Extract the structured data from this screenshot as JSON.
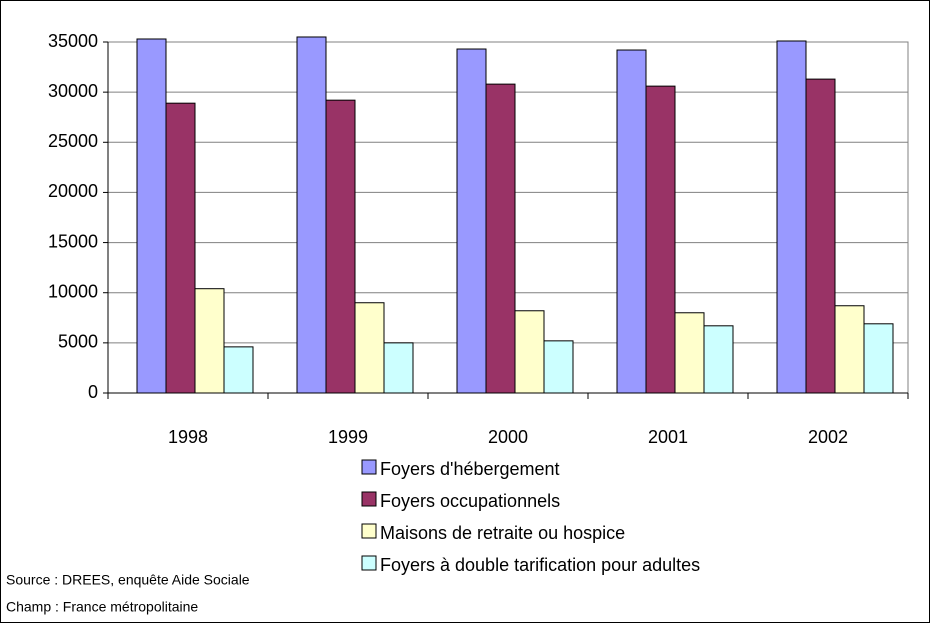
{
  "chart_data": {
    "type": "bar",
    "categories": [
      "1998",
      "1999",
      "2000",
      "2001",
      "2002"
    ],
    "series": [
      {
        "name": "Foyers d'hébergement",
        "color": "#9999ff",
        "values": [
          35300,
          35500,
          34300,
          34200,
          35100
        ]
      },
      {
        "name": "Foyers occupationnels",
        "color": "#993366",
        "values": [
          28900,
          29200,
          30800,
          30600,
          31300
        ]
      },
      {
        "name": "Maisons de retraite ou hospice",
        "color": "#ffffcc",
        "values": [
          10400,
          9000,
          8200,
          8000,
          8700
        ]
      },
      {
        "name": "Foyers à double tarification pour adultes",
        "color": "#ccffff",
        "values": [
          4600,
          5000,
          5200,
          6700,
          6900
        ]
      }
    ],
    "ylim": [
      0,
      35000
    ],
    "yticks": [
      0,
      5000,
      10000,
      15000,
      20000,
      25000,
      30000,
      35000
    ],
    "grid": true,
    "legend": "bottom",
    "notes": [
      "Source : DREES, enquête Aide Sociale",
      "Champ : France métropolitaine"
    ]
  }
}
